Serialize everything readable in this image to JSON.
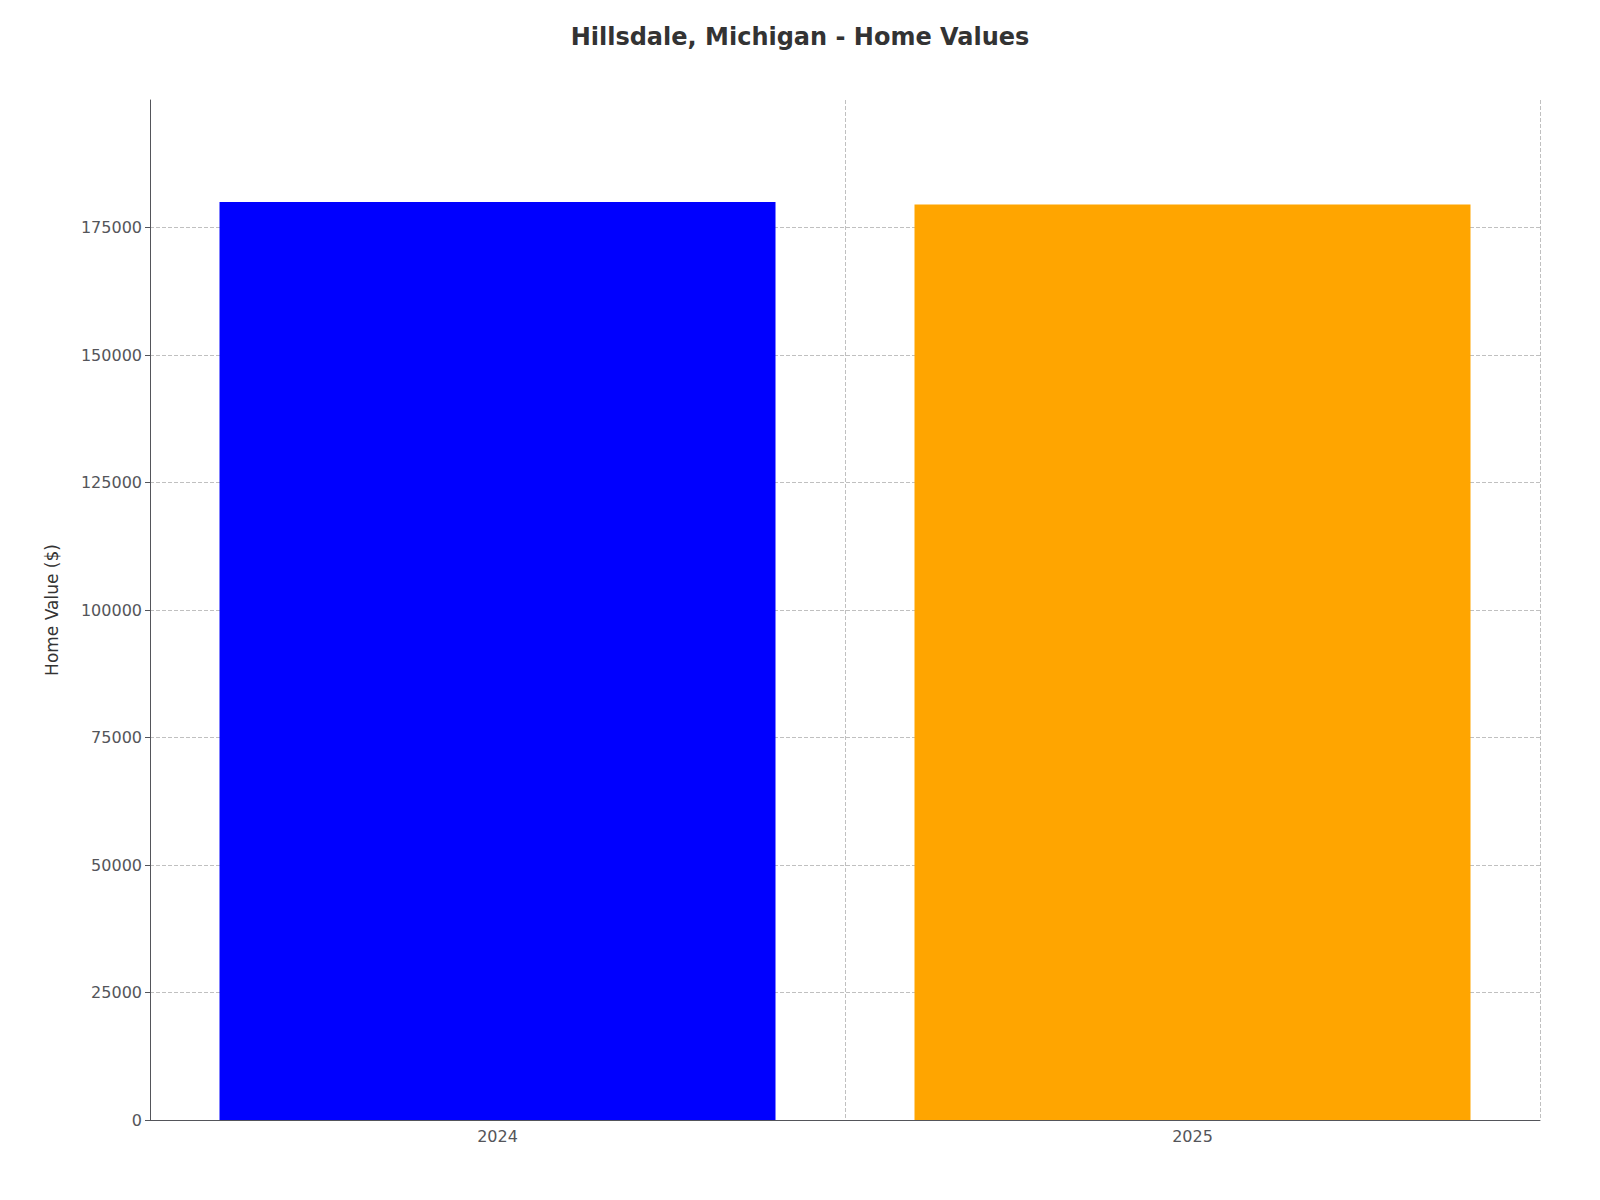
{
  "chart_data": {
    "type": "bar",
    "title": "Hillsdale, Michigan - Home Values",
    "categories": [
      "2024",
      "2025"
    ],
    "values": [
      180000,
      179500
    ],
    "colors": [
      "#0000ff",
      "#ffa500"
    ],
    "ylabel": "Home Value ($)",
    "ylim": [
      0,
      200000
    ],
    "yticks": [
      0,
      25000,
      50000,
      75000,
      100000,
      125000,
      150000,
      175000
    ],
    "grid": true
  }
}
